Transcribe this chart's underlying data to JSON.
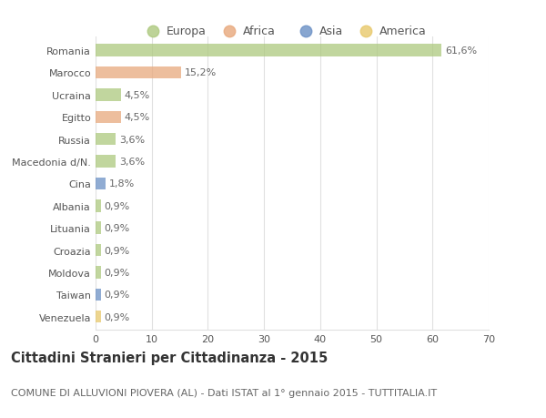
{
  "categories": [
    "Romania",
    "Marocco",
    "Ucraina",
    "Egitto",
    "Russia",
    "Macedonia d/N.",
    "Cina",
    "Albania",
    "Lituania",
    "Croazia",
    "Moldova",
    "Taiwan",
    "Venezuela"
  ],
  "values": [
    61.6,
    15.2,
    4.5,
    4.5,
    3.6,
    3.6,
    1.8,
    0.9,
    0.9,
    0.9,
    0.9,
    0.9,
    0.9
  ],
  "labels": [
    "61,6%",
    "15,2%",
    "4,5%",
    "4,5%",
    "3,6%",
    "3,6%",
    "1,8%",
    "0,9%",
    "0,9%",
    "0,9%",
    "0,9%",
    "0,9%",
    "0,9%"
  ],
  "colors": [
    "#adc97e",
    "#e8a87c",
    "#adc97e",
    "#e8a87c",
    "#adc97e",
    "#adc97e",
    "#6b90c5",
    "#adc97e",
    "#adc97e",
    "#adc97e",
    "#adc97e",
    "#6b90c5",
    "#e8c86a"
  ],
  "legend_labels": [
    "Europa",
    "Africa",
    "Asia",
    "America"
  ],
  "legend_colors": [
    "#adc97e",
    "#e8a87c",
    "#6b90c5",
    "#e8c86a"
  ],
  "title_bold": "Cittadini Stranieri per Cittadinanza - 2015",
  "subtitle": "COMUNE DI ALLUVIONI PIOVERA (AL) - Dati ISTAT al 1° gennaio 2015 - TUTTITALIA.IT",
  "xlim": [
    0,
    70
  ],
  "xticks": [
    0,
    10,
    20,
    30,
    40,
    50,
    60,
    70
  ],
  "background_color": "#ffffff",
  "grid_color": "#e0e0e0",
  "bar_height": 0.55,
  "title_fontsize": 10.5,
  "subtitle_fontsize": 8,
  "label_fontsize": 8,
  "tick_fontsize": 8,
  "legend_fontsize": 9
}
